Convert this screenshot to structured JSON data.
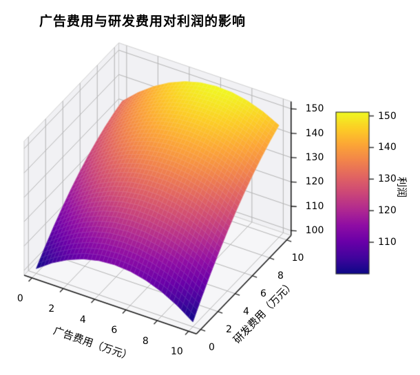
{
  "title": "广告费用与研发费用对利润的影响",
  "axes": {
    "x": {
      "label": "广告费用（万元）",
      "ticks": [
        0,
        2,
        4,
        6,
        8,
        10
      ]
    },
    "y": {
      "label": "研发费用（万元）",
      "ticks": [
        0,
        2,
        4,
        6,
        8,
        10
      ]
    },
    "z": {
      "ticks": [
        100,
        110,
        120,
        130,
        140,
        150
      ]
    }
  },
  "colorbar": {
    "label": "利润",
    "ticks": [
      110,
      120,
      130,
      140,
      150
    ],
    "range": [
      100,
      151.2
    ],
    "colormap": "plasma"
  },
  "colors": {
    "background": "#ffffff",
    "pane_wall": "#f1f1f4",
    "pane_floor": "#f6f6f8",
    "grid": "#b3b3b3",
    "pane_edge": "#cfcfcf",
    "spine": "#1a1a1a",
    "text": "#000000",
    "mesh_edge": "rgba(255,255,255,0.28)",
    "plasma_stops": [
      "#0d0887",
      "#41049d",
      "#6a00a8",
      "#8f0da4",
      "#b12a90",
      "#cc4778",
      "#e16462",
      "#f2844b",
      "#fca636",
      "#fcce25",
      "#f0f921"
    ]
  },
  "chart_data": {
    "type": "surface3d",
    "title": "广告费用与研发费用对利润的影响",
    "xlabel": "广告费用（万元）",
    "ylabel": "研发费用（万元）",
    "zlabel": "利润",
    "x": [
      0,
      1,
      2,
      3,
      4,
      5,
      6,
      7,
      8,
      9,
      10
    ],
    "y": [
      0,
      1,
      2,
      3,
      4,
      5,
      6,
      7,
      8,
      9,
      10
    ],
    "z": [
      [
        100.0,
        104.5,
        108.0,
        110.5,
        112.0,
        112.5,
        112.0,
        110.5,
        108.0,
        104.5,
        100.0
      ],
      [
        105.0,
        109.6,
        113.2,
        115.9,
        117.5,
        118.1,
        117.7,
        116.3,
        114.0,
        110.6,
        106.2
      ],
      [
        109.6,
        114.3,
        118.1,
        120.8,
        122.6,
        123.3,
        123.0,
        121.8,
        119.5,
        116.3,
        112.0
      ],
      [
        113.8,
        118.7,
        122.5,
        125.4,
        127.2,
        128.1,
        128.0,
        126.8,
        124.7,
        121.5,
        117.4
      ],
      [
        117.6,
        122.6,
        126.6,
        129.5,
        131.5,
        132.5,
        132.5,
        131.4,
        129.4,
        126.4,
        122.4
      ],
      [
        121.0,
        126.1,
        130.2,
        133.3,
        135.4,
        136.5,
        136.6,
        135.7,
        133.8,
        130.9,
        127.0
      ],
      [
        124.0,
        129.2,
        133.4,
        136.7,
        138.9,
        140.1,
        140.3,
        139.5,
        137.8,
        135.0,
        131.2
      ],
      [
        126.6,
        131.9,
        136.3,
        139.6,
        142.0,
        143.3,
        143.6,
        143.0,
        141.3,
        138.7,
        135.0
      ],
      [
        128.8,
        134.3,
        138.7,
        142.2,
        144.6,
        146.1,
        146.6,
        146.0,
        144.5,
        142.0,
        138.4
      ],
      [
        130.6,
        136.2,
        140.8,
        144.3,
        146.9,
        148.5,
        149.1,
        148.7,
        147.2,
        144.8,
        141.4
      ],
      [
        132.0,
        137.7,
        142.4,
        146.1,
        148.8,
        150.5,
        151.2,
        150.9,
        149.6,
        147.3,
        144.0
      ]
    ],
    "xlim": [
      -0.5,
      10.5
    ],
    "ylim": [
      -0.5,
      10.5
    ],
    "zlim": [
      98,
      153
    ],
    "color_range": [
      100,
      151.2
    ],
    "grid": true,
    "colorbar_position": "right"
  }
}
